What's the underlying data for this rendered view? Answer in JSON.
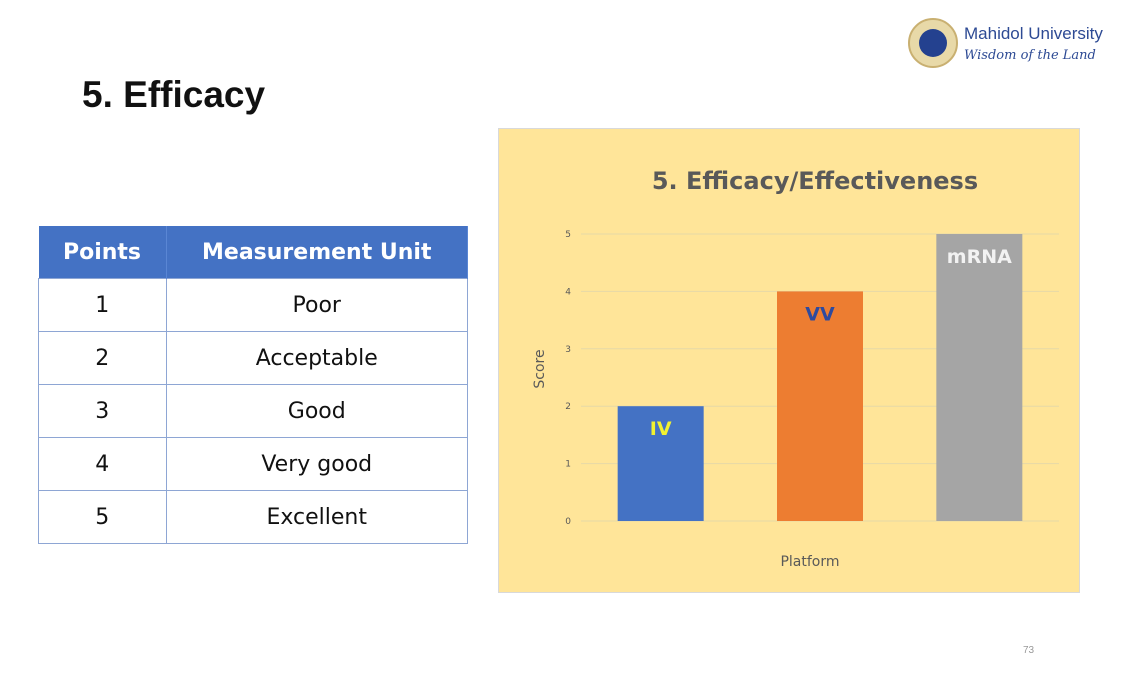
{
  "slide": {
    "title": "5. Efficacy",
    "page_number": "73"
  },
  "logo": {
    "name": "Mahidol University",
    "motto": "Wisdom of the Land"
  },
  "table": {
    "headers": [
      "Points",
      "Measurement Unit"
    ],
    "rows": [
      [
        "1",
        "Poor"
      ],
      [
        "2",
        "Acceptable"
      ],
      [
        "3",
        "Good"
      ],
      [
        "4",
        "Very good"
      ],
      [
        "5",
        "Excellent"
      ]
    ]
  },
  "chart_data": {
    "type": "bar",
    "title": "5. Efficacy/Effectiveness",
    "xlabel": "Platform",
    "ylabel": "Score",
    "ylim": [
      0,
      5
    ],
    "yticks": [
      "0",
      "1",
      "2",
      "3",
      "4",
      "5"
    ],
    "grid": true,
    "categories": [
      "IV",
      "VV",
      "mRNA"
    ],
    "values": [
      2,
      4,
      5
    ],
    "colors": [
      "#4472c4",
      "#ed7d31",
      "#a5a5a5"
    ],
    "label_colors": [
      "#f2f230",
      "#2e4a9e",
      "#f2f2f2"
    ],
    "background": "#ffe599"
  }
}
